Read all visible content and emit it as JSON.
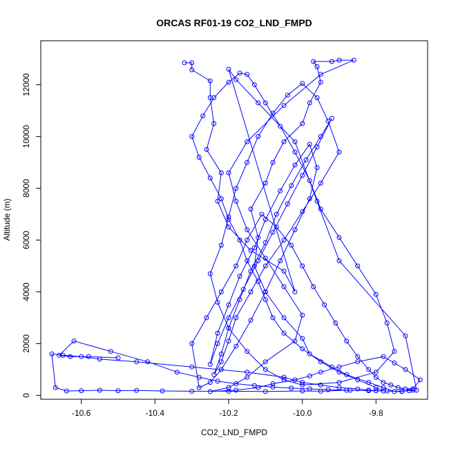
{
  "chart_data": {
    "type": "line",
    "title": "ORCAS RF01-19 CO2_LND_FMPD",
    "xlabel": "CO2_LND_FMPD",
    "ylabel": "Altitude (m)",
    "xlim": [
      -10.71,
      -9.66
    ],
    "ylim": [
      -150,
      13700
    ],
    "x_ticks": [
      -10.6,
      -10.4,
      -10.2,
      -10.0,
      -9.8
    ],
    "x_tick_labels": [
      "-10.6",
      "-10.4",
      "-10.2",
      "-10.0",
      "-9.8"
    ],
    "y_ticks": [
      0,
      2000,
      4000,
      6000,
      8000,
      10000,
      12000
    ],
    "y_tick_labels": [
      "0",
      "2000",
      "4000",
      "6000",
      "8000",
      "10000",
      "12000"
    ],
    "grid": false,
    "legend": "none",
    "series": [
      {
        "color": "#0000ff",
        "marker": "open-circle",
        "x": [
          -10.32,
          -10.3,
          -10.3,
          -10.25,
          -10.25,
          -10.24,
          -10.26,
          -10.22,
          -10.23,
          -10.2,
          -10.14,
          -10.05,
          -10.02,
          -10.2,
          -10.18,
          -10.12,
          -10.02,
          -9.96,
          -9.9,
          -9.72,
          -9.69,
          -9.75,
          -9.78,
          -9.82,
          -9.88,
          -9.92,
          -9.98,
          -10.0,
          -10.05,
          -10.1,
          -10.13,
          -10.12,
          -10.14,
          -10.1,
          -10.08,
          -10.05,
          -10.0,
          -9.98,
          -9.95,
          -9.96,
          -9.97,
          -9.92,
          -9.9,
          -9.86,
          -9.95,
          -10.05,
          -10.15,
          -10.2,
          -10.18,
          -10.15,
          -10.1,
          -10.05,
          -10.0,
          -10.02,
          -10.1,
          -10.15,
          -10.2,
          -10.25,
          -10.18,
          -10.12,
          -10.08,
          -10.02,
          -9.98,
          -9.95,
          -9.9,
          -9.85,
          -9.78,
          -9.75,
          -9.72,
          -9.68,
          -9.7,
          -9.73,
          -9.8,
          -9.88,
          -9.95,
          -10.0,
          -10.1,
          -10.2,
          -10.3,
          -10.38,
          -10.45,
          -10.5,
          -10.55,
          -10.6,
          -10.64,
          -10.67,
          -10.68,
          -10.65,
          -10.6,
          -10.55,
          -10.45,
          -10.3,
          -10.15,
          -10.05,
          -10.0,
          -9.95,
          -9.9,
          -9.85,
          -9.82,
          -9.78,
          -9.8,
          -9.85,
          -9.9,
          -9.95,
          -10.0,
          -10.05,
          -10.08,
          -10.1,
          -10.12,
          -10.15,
          -10.17,
          -10.2,
          -10.22,
          -10.25,
          -10.28,
          -10.3,
          -10.27,
          -10.24,
          -10.2,
          -10.17,
          -10.15,
          -10.13,
          -10.1,
          -10.06,
          -10.02,
          -9.98,
          -9.95,
          -9.9,
          -9.85,
          -9.8,
          -9.77,
          -9.75,
          -9.8,
          -9.9,
          -10.0,
          -10.05,
          -10.1,
          -10.15,
          -10.2,
          -10.23,
          -10.25,
          -10.22,
          -10.2,
          -10.18,
          -10.15,
          -10.12,
          -10.08,
          -10.04,
          -10.0,
          -9.96,
          -9.93,
          -9.9,
          -9.95,
          -10.0,
          -10.05,
          -10.1,
          -10.14,
          -10.18,
          -10.2,
          -10.22,
          -10.24,
          -10.22,
          -10.2,
          -10.17,
          -10.14,
          -10.1,
          -10.07,
          -10.03,
          -9.99,
          -9.95,
          -9.92,
          -9.96,
          -10.0,
          -10.04,
          -10.08,
          -10.12,
          -10.16,
          -10.2,
          -10.23,
          -10.25,
          -10.23,
          -10.2,
          -10.17,
          -10.13,
          -10.1,
          -10.06,
          -10.02,
          -9.98,
          -9.96,
          -9.98,
          -10.02,
          -10.06,
          -10.1,
          -10.14,
          -10.18,
          -10.22,
          -10.25,
          -10.28,
          -10.3,
          -10.26,
          -10.22,
          -10.18,
          -10.15,
          -10.11,
          -10.07,
          -10.03,
          -10.0,
          -9.97,
          -9.94,
          -9.91,
          -9.88,
          -9.85,
          -9.82,
          -9.8,
          -9.78,
          -9.76,
          -9.74,
          -9.72,
          -9.7,
          -9.71,
          -9.73,
          -9.77,
          -9.82,
          -9.87,
          -9.93,
          -9.98,
          -10.03,
          -10.08,
          -10.13,
          -10.18,
          -10.23,
          -10.28,
          -10.34,
          -10.42,
          -10.52,
          -10.62,
          -10.66,
          -10.63,
          -10.58,
          -10.5
        ],
        "y": [
          12850,
          12850,
          12580,
          12150,
          11500,
          10500,
          9500,
          8600,
          7500,
          6500,
          5600,
          4800,
          4000,
          12600,
          12200,
          11300,
          9800,
          7500,
          5200,
          2300,
          200,
          150,
          300,
          500,
          800,
          1100,
          1600,
          2200,
          3000,
          4000,
          5000,
          6100,
          7200,
          8200,
          9000,
          9800,
          10500,
          11300,
          12100,
          12700,
          12900,
          12900,
          12950,
          12950,
          12400,
          11200,
          9800,
          8600,
          7500,
          6400,
          5300,
          4200,
          3100,
          2100,
          1300,
          700,
          300,
          150,
          200,
          300,
          450,
          600,
          750,
          900,
          1100,
          1300,
          1500,
          1250,
          1000,
          600,
          250,
          150,
          180,
          200,
          160,
          170,
          150,
          160,
          160,
          170,
          190,
          180,
          200,
          180,
          170,
          300,
          1600,
          1550,
          1500,
          1400,
          1300,
          1100,
          900,
          700,
          500,
          400,
          300,
          250,
          200,
          170,
          300,
          600,
          900,
          1300,
          1800,
          2400,
          3000,
          3700,
          4400,
          5200,
          6000,
          6800,
          7600,
          8400,
          9200,
          10000,
          10800,
          11500,
          12100,
          12450,
          12400,
          12000,
          11300,
          10400,
          9400,
          8300,
          7200,
          6100,
          5000,
          3900,
          2800,
          1700,
          900,
          500,
          400,
          600,
          1000,
          1700,
          2600,
          3600,
          4700,
          5800,
          6900,
          8000,
          9000,
          10000,
          10900,
          11600,
          12050,
          11500,
          10600,
          9400,
          8200,
          7100,
          6000,
          5000,
          4000,
          3000,
          2100,
          1300,
          800,
          1600,
          2600,
          3700,
          4800,
          5900,
          7000,
          8100,
          9100,
          10000,
          10700,
          9600,
          8500,
          7400,
          6300,
          5200,
          4100,
          3000,
          2000,
          1200,
          2400,
          3500,
          4600,
          5700,
          6800,
          7900,
          8900,
          9700,
          8800,
          7600,
          6400,
          5200,
          4000,
          2900,
          1900,
          1000,
          500,
          300,
          2000,
          3000,
          4000,
          5000,
          6000,
          7000,
          6500,
          5800,
          5000,
          4200,
          3500,
          2800,
          2100,
          1500,
          1000,
          700,
          500,
          400,
          300,
          250,
          200,
          180,
          160,
          170,
          180,
          200,
          220,
          250,
          280,
          320,
          380,
          450,
          550,
          700,
          900,
          1300,
          1700,
          2100,
          1550,
          1500,
          1500,
          1450
        ]
      }
    ]
  }
}
